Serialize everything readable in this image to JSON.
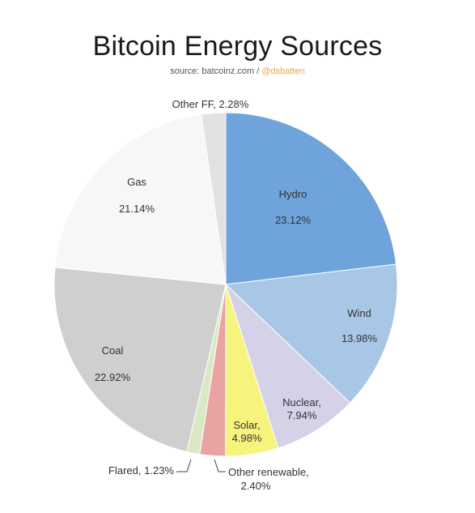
{
  "header": {
    "title": "Bitcoin Energy Sources",
    "source_prefix": "source: batcoinz.com / ",
    "source_handle": "@dsbatten"
  },
  "chart_data": {
    "type": "pie",
    "title": "Bitcoin Energy Sources",
    "subtitle": "source: batcoinz.com / @dsbatten",
    "slices": [
      {
        "label": "Hydro",
        "value": 23.12,
        "value_text": "23.12%",
        "color": "#6fa3dc"
      },
      {
        "label": "Wind",
        "value": 13.98,
        "value_text": "13.98%",
        "color": "#a8c6e6"
      },
      {
        "label": "Nuclear,",
        "value": 7.94,
        "value_text": "7.94%",
        "color": "#d5d1e6"
      },
      {
        "label": "Solar,",
        "value": 4.98,
        "value_text": "4.98%",
        "color": "#f7f47e"
      },
      {
        "label": "Other renewable,",
        "value": 2.4,
        "value_text": "2.40%",
        "color": "#e8a3a3"
      },
      {
        "label": "Flared,",
        "value": 1.23,
        "value_text": "1.23%",
        "color": "#dbe8c4"
      },
      {
        "label": "Coal",
        "value": 22.92,
        "value_text": "22.92%",
        "color": "#cfcfcf"
      },
      {
        "label": "Gas",
        "value": 21.14,
        "value_text": "21.14%",
        "color": "#f7f7f7"
      },
      {
        "label": "Other FF,",
        "value": 2.28,
        "value_text": "2.28%",
        "color": "#e2e2e2"
      }
    ]
  }
}
